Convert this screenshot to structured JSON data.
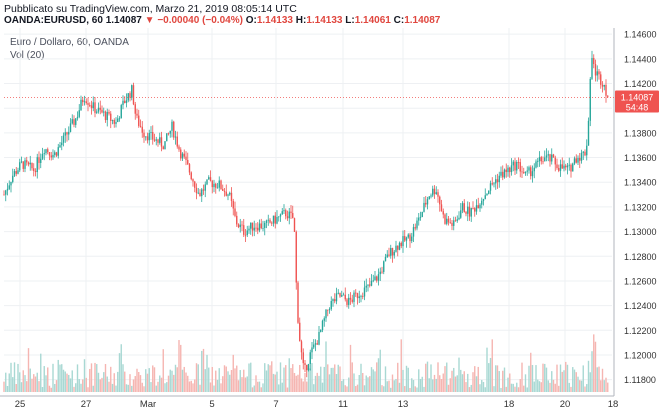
{
  "header": {
    "published": "Pubblicato su TradingView.com, Marzo 21, 2019 08:05:14 UTC",
    "symbol": "OANDA:EURUSD, 60",
    "last": "1.14087",
    "change": "−0.00040 (−0.04%)",
    "o_label": "O:",
    "o_value": "1.14133",
    "h_label": "H:",
    "h_value": "1.14133",
    "l_label": "L:",
    "l_value": "1.14061",
    "c_label": "C:",
    "c_value": "1.14087"
  },
  "legend": {
    "title": "Euro / Dollaro, 60, OANDA",
    "volume": "Vol (20)"
  },
  "price_tag": {
    "value": "1.14087",
    "countdown": "54:48"
  },
  "colors": {
    "up": "#26a69a",
    "down": "#ef5350",
    "up_vol": "#a8d8d3",
    "down_vol": "#f5b5b1",
    "grid": "#eef0f3"
  },
  "chart_data": {
    "type": "candlestick",
    "title": "Euro / Dollaro, 60, OANDA",
    "y_ticks": [
      "1.11800",
      "1.12000",
      "1.12200",
      "1.12400",
      "1.12600",
      "1.12800",
      "1.13000",
      "1.13200",
      "1.13400",
      "1.13600",
      "1.13800",
      "1.14000",
      "1.14200",
      "1.14400",
      "1.14600"
    ],
    "ylim": [
      1.117,
      1.1465
    ],
    "x_ticks": [
      "25",
      "27",
      "Mar",
      "5",
      "7",
      "11",
      "13",
      "18",
      "20",
      "18"
    ],
    "grid": true,
    "series": [
      {
        "name": "EURUSD close (approx.)",
        "points": [
          [
            0,
            1.133
          ],
          [
            8,
            1.1345
          ],
          [
            18,
            1.1355
          ],
          [
            30,
            1.135
          ],
          [
            40,
            1.1368
          ],
          [
            50,
            1.1362
          ],
          [
            60,
            1.1375
          ],
          [
            72,
            1.1392
          ],
          [
            80,
            1.141
          ],
          [
            90,
            1.14
          ],
          [
            100,
            1.1395
          ],
          [
            112,
            1.1388
          ],
          [
            120,
            1.1405
          ],
          [
            128,
            1.1415
          ],
          [
            132,
            1.1392
          ],
          [
            140,
            1.138
          ],
          [
            150,
            1.1375
          ],
          [
            160,
            1.137
          ],
          [
            168,
            1.1385
          ],
          [
            176,
            1.1365
          ],
          [
            185,
            1.135
          ],
          [
            195,
            1.133
          ],
          [
            205,
            1.134
          ],
          [
            215,
            1.1338
          ],
          [
            225,
            1.133
          ],
          [
            232,
            1.1308
          ],
          [
            240,
            1.13
          ],
          [
            250,
            1.1305
          ],
          [
            262,
            1.1305
          ],
          [
            272,
            1.131
          ],
          [
            282,
            1.1315
          ],
          [
            290,
            1.131
          ],
          [
            293,
            1.124
          ],
          [
            296,
            1.121
          ],
          [
            300,
            1.1185
          ],
          [
            306,
            1.12
          ],
          [
            315,
            1.1215
          ],
          [
            325,
            1.124
          ],
          [
            335,
            1.1248
          ],
          [
            345,
            1.1243
          ],
          [
            355,
            1.125
          ],
          [
            365,
            1.1255
          ],
          [
            375,
            1.1265
          ],
          [
            385,
            1.1282
          ],
          [
            395,
            1.129
          ],
          [
            405,
            1.1295
          ],
          [
            415,
            1.131
          ],
          [
            425,
            1.133
          ],
          [
            432,
            1.1335
          ],
          [
            440,
            1.131
          ],
          [
            450,
            1.1305
          ],
          [
            458,
            1.132
          ],
          [
            466,
            1.1315
          ],
          [
            476,
            1.1325
          ],
          [
            485,
            1.1335
          ],
          [
            495,
            1.1345
          ],
          [
            505,
            1.135
          ],
          [
            513,
            1.1355
          ],
          [
            522,
            1.1345
          ],
          [
            530,
            1.1352
          ],
          [
            540,
            1.136
          ],
          [
            548,
            1.1358
          ],
          [
            556,
            1.1352
          ],
          [
            565,
            1.135
          ],
          [
            572,
            1.136
          ],
          [
            578,
            1.1362
          ],
          [
            582,
            1.1365
          ],
          [
            585,
            1.1395
          ],
          [
            587,
            1.1445
          ],
          [
            590,
            1.1432
          ],
          [
            595,
            1.1425
          ],
          [
            600,
            1.142
          ],
          [
            604,
            1.1409
          ]
        ]
      }
    ]
  }
}
